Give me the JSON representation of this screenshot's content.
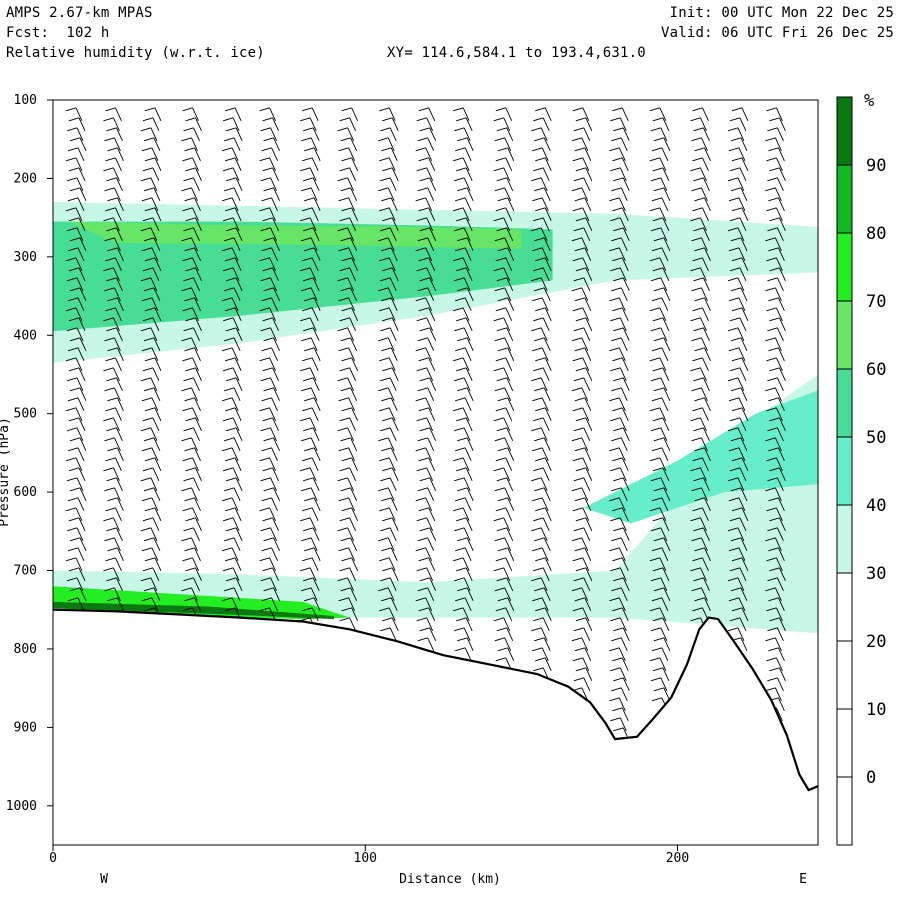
{
  "header": {
    "model": "AMPS 2.67-km MPAS",
    "forecast": "Fcst:  102 h",
    "field": "Relative humidity (w.r.t. ice)",
    "init": "Init: 00 UTC Mon 22 Dec 25",
    "valid": "Valid: 06 UTC Fri 26 Dec 25",
    "xy_range": "XY= 114.6,584.1 to 193.4,631.0"
  },
  "chart_data": {
    "type": "heatmap",
    "title": "Relative humidity (w.r.t. ice)",
    "xlabel": "Distance (km)",
    "ylabel": "Pressure (hPa)",
    "xlim": [
      0,
      245
    ],
    "ylim": [
      1050,
      100
    ],
    "x_ticks": [
      0,
      100,
      200
    ],
    "y_ticks": [
      100,
      200,
      300,
      400,
      500,
      600,
      700,
      800,
      900,
      1000
    ],
    "x_end_labels": {
      "left": "W",
      "right": "E"
    },
    "colorbar": {
      "unit": "%",
      "tick_labels": [
        90,
        80,
        70,
        60,
        50,
        40,
        30,
        20,
        10,
        0
      ],
      "levels": [
        {
          "min": -10,
          "max": 30,
          "color": "#ffffff"
        },
        {
          "min": 30,
          "max": 40,
          "color": "#c7f7e6"
        },
        {
          "min": 40,
          "max": 50,
          "color": "#66eec8"
        },
        {
          "min": 50,
          "max": 60,
          "color": "#47dd94"
        },
        {
          "min": 60,
          "max": 70,
          "color": "#66e566"
        },
        {
          "min": 70,
          "max": 80,
          "color": "#22ee22"
        },
        {
          "min": 80,
          "max": 90,
          "color": "#10bb22"
        },
        {
          "min": 90,
          "max": 100,
          "color": "#087a10"
        }
      ]
    },
    "terrain_surface": [
      [
        0,
        750
      ],
      [
        20,
        752
      ],
      [
        40,
        756
      ],
      [
        60,
        760
      ],
      [
        80,
        765
      ],
      [
        95,
        775
      ],
      [
        110,
        790
      ],
      [
        125,
        808
      ],
      [
        140,
        820
      ],
      [
        155,
        832
      ],
      [
        165,
        848
      ],
      [
        172,
        868
      ],
      [
        177,
        895
      ],
      [
        180,
        915
      ],
      [
        187,
        912
      ],
      [
        192,
        890
      ],
      [
        198,
        862
      ],
      [
        203,
        820
      ],
      [
        207,
        775
      ],
      [
        210,
        760
      ],
      [
        213,
        762
      ],
      [
        218,
        790
      ],
      [
        224,
        825
      ],
      [
        230,
        865
      ],
      [
        235,
        910
      ],
      [
        239,
        960
      ],
      [
        242,
        980
      ],
      [
        245,
        975
      ]
    ],
    "humidity_regions": [
      {
        "rh": 35,
        "polygon": [
          [
            0,
            230
          ],
          [
            60,
            235
          ],
          [
            120,
            240
          ],
          [
            180,
            245
          ],
          [
            245,
            262
          ],
          [
            245,
            320
          ],
          [
            180,
            330
          ],
          [
            120,
            375
          ],
          [
            60,
            410
          ],
          [
            0,
            435
          ]
        ]
      },
      {
        "rh": 55,
        "polygon": [
          [
            0,
            255
          ],
          [
            60,
            255
          ],
          [
            120,
            260
          ],
          [
            160,
            265
          ],
          [
            160,
            330
          ],
          [
            120,
            350
          ],
          [
            60,
            375
          ],
          [
            0,
            395
          ]
        ]
      },
      {
        "rh": 65,
        "polygon": [
          [
            5,
            255
          ],
          [
            60,
            260
          ],
          [
            120,
            262
          ],
          [
            150,
            265
          ],
          [
            150,
            290
          ],
          [
            90,
            285
          ],
          [
            20,
            282
          ]
        ]
      },
      {
        "rh": 35,
        "polygon": [
          [
            0,
            700
          ],
          [
            60,
            705
          ],
          [
            120,
            715
          ],
          [
            180,
            700
          ],
          [
            220,
            520
          ],
          [
            245,
            450
          ],
          [
            245,
            780
          ],
          [
            180,
            760
          ],
          [
            100,
            760
          ],
          [
            0,
            745
          ]
        ]
      },
      {
        "rh": 45,
        "polygon": [
          [
            170,
            620
          ],
          [
            200,
            560
          ],
          [
            225,
            500
          ],
          [
            245,
            470
          ],
          [
            245,
            590
          ],
          [
            215,
            600
          ],
          [
            185,
            640
          ]
        ]
      },
      {
        "rh": 75,
        "polygon": [
          [
            0,
            720
          ],
          [
            40,
            730
          ],
          [
            80,
            740
          ],
          [
            95,
            760
          ],
          [
            80,
            762
          ],
          [
            40,
            757
          ],
          [
            0,
            748
          ]
        ]
      },
      {
        "rh": 90,
        "polygon": [
          [
            0,
            740
          ],
          [
            50,
            746
          ],
          [
            90,
            758
          ],
          [
            90,
            762
          ],
          [
            50,
            755
          ],
          [
            0,
            748
          ]
        ]
      }
    ],
    "wind_barb_columns_km": [
      8,
      20,
      32,
      45,
      58,
      70,
      83,
      95,
      108,
      120,
      132,
      145,
      157,
      170,
      182,
      195,
      208,
      220,
      232
    ]
  }
}
